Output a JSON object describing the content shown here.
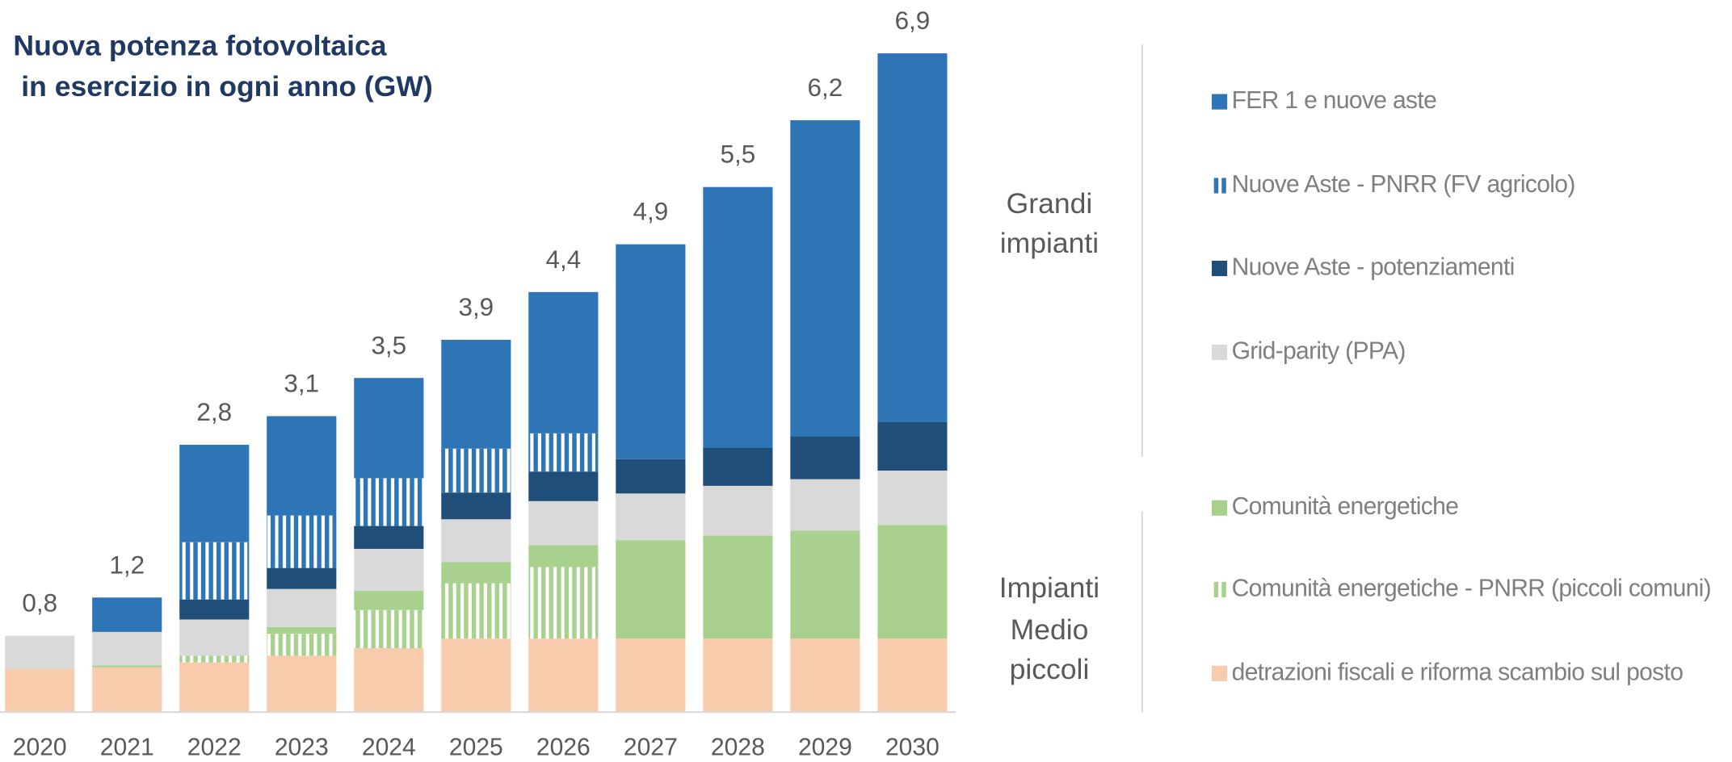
{
  "chart_data": {
    "type": "stacked-bar",
    "title": [
      "Nuova potenza fotovoltaica",
      " in esercizio in ogni anno (GW)"
    ],
    "categories": [
      "2020",
      "2021",
      "2022",
      "2023",
      "2024",
      "2025",
      "2026",
      "2027",
      "2028",
      "2029",
      "2030"
    ],
    "series": [
      {
        "name": "FER 1 e nuove aste",
        "color": "#2e75b6",
        "values": [
          0,
          0.36,
          1.02,
          1.04,
          1.05,
          1.14,
          1.48,
          2.25,
          2.73,
          3.31,
          3.86
        ]
      },
      {
        "name": "Nuove Aste - PNRR (FV agricolo)",
        "color": "#2e75b6",
        "pattern": "stripes",
        "values": [
          0,
          0,
          0.6,
          0.55,
          0.5,
          0.46,
          0.4,
          0,
          0,
          0,
          0
        ]
      },
      {
        "name": "Nuove Aste - potenziamenti",
        "color": "#1f4e79",
        "values": [
          0,
          0,
          0.21,
          0.22,
          0.24,
          0.28,
          0.31,
          0.36,
          0.4,
          0.45,
          0.51
        ]
      },
      {
        "name": "Grid-parity (PPA)",
        "color": "#d9d9d9",
        "values": [
          0.35,
          0.35,
          0.38,
          0.4,
          0.44,
          0.45,
          0.46,
          0.49,
          0.52,
          0.54,
          0.57
        ]
      },
      {
        "name": "Comunità energetiche",
        "color": "#a9d18e",
        "values": [
          0,
          0.02,
          0,
          0.07,
          0.2,
          0.22,
          0.23,
          1.03,
          1.08,
          1.13,
          1.19
        ]
      },
      {
        "name": "Comunità energetiche - PNRR (piccoli comuni)",
        "color": "#a9d18e",
        "pattern": "stripes",
        "values": [
          0,
          0,
          0.07,
          0.23,
          0.4,
          0.58,
          0.75,
          0,
          0,
          0,
          0
        ]
      },
      {
        "name": "detrazioni fiscali e riforma scambio sul posto",
        "color": "#f8cbad",
        "values": [
          0.45,
          0.47,
          0.52,
          0.59,
          0.67,
          0.77,
          0.77,
          0.77,
          0.77,
          0.77,
          0.77
        ]
      }
    ],
    "totals": {
      "values": [
        0.8,
        1.2,
        2.8,
        3.1,
        3.5,
        3.9,
        4.4,
        4.9,
        5.5,
        6.2,
        6.9
      ],
      "value_labels": [
        "0,8",
        "1,2",
        "2,8",
        "3,1",
        "3,5",
        "3,9",
        "4,4",
        "4,9",
        "5,5",
        "6,2",
        "6,9"
      ]
    },
    "legend_groups": [
      {
        "label": [
          "Grandi",
          "impianti"
        ]
      },
      {
        "label": [
          "Impianti",
          "Medio",
          "piccoli"
        ]
      }
    ]
  }
}
